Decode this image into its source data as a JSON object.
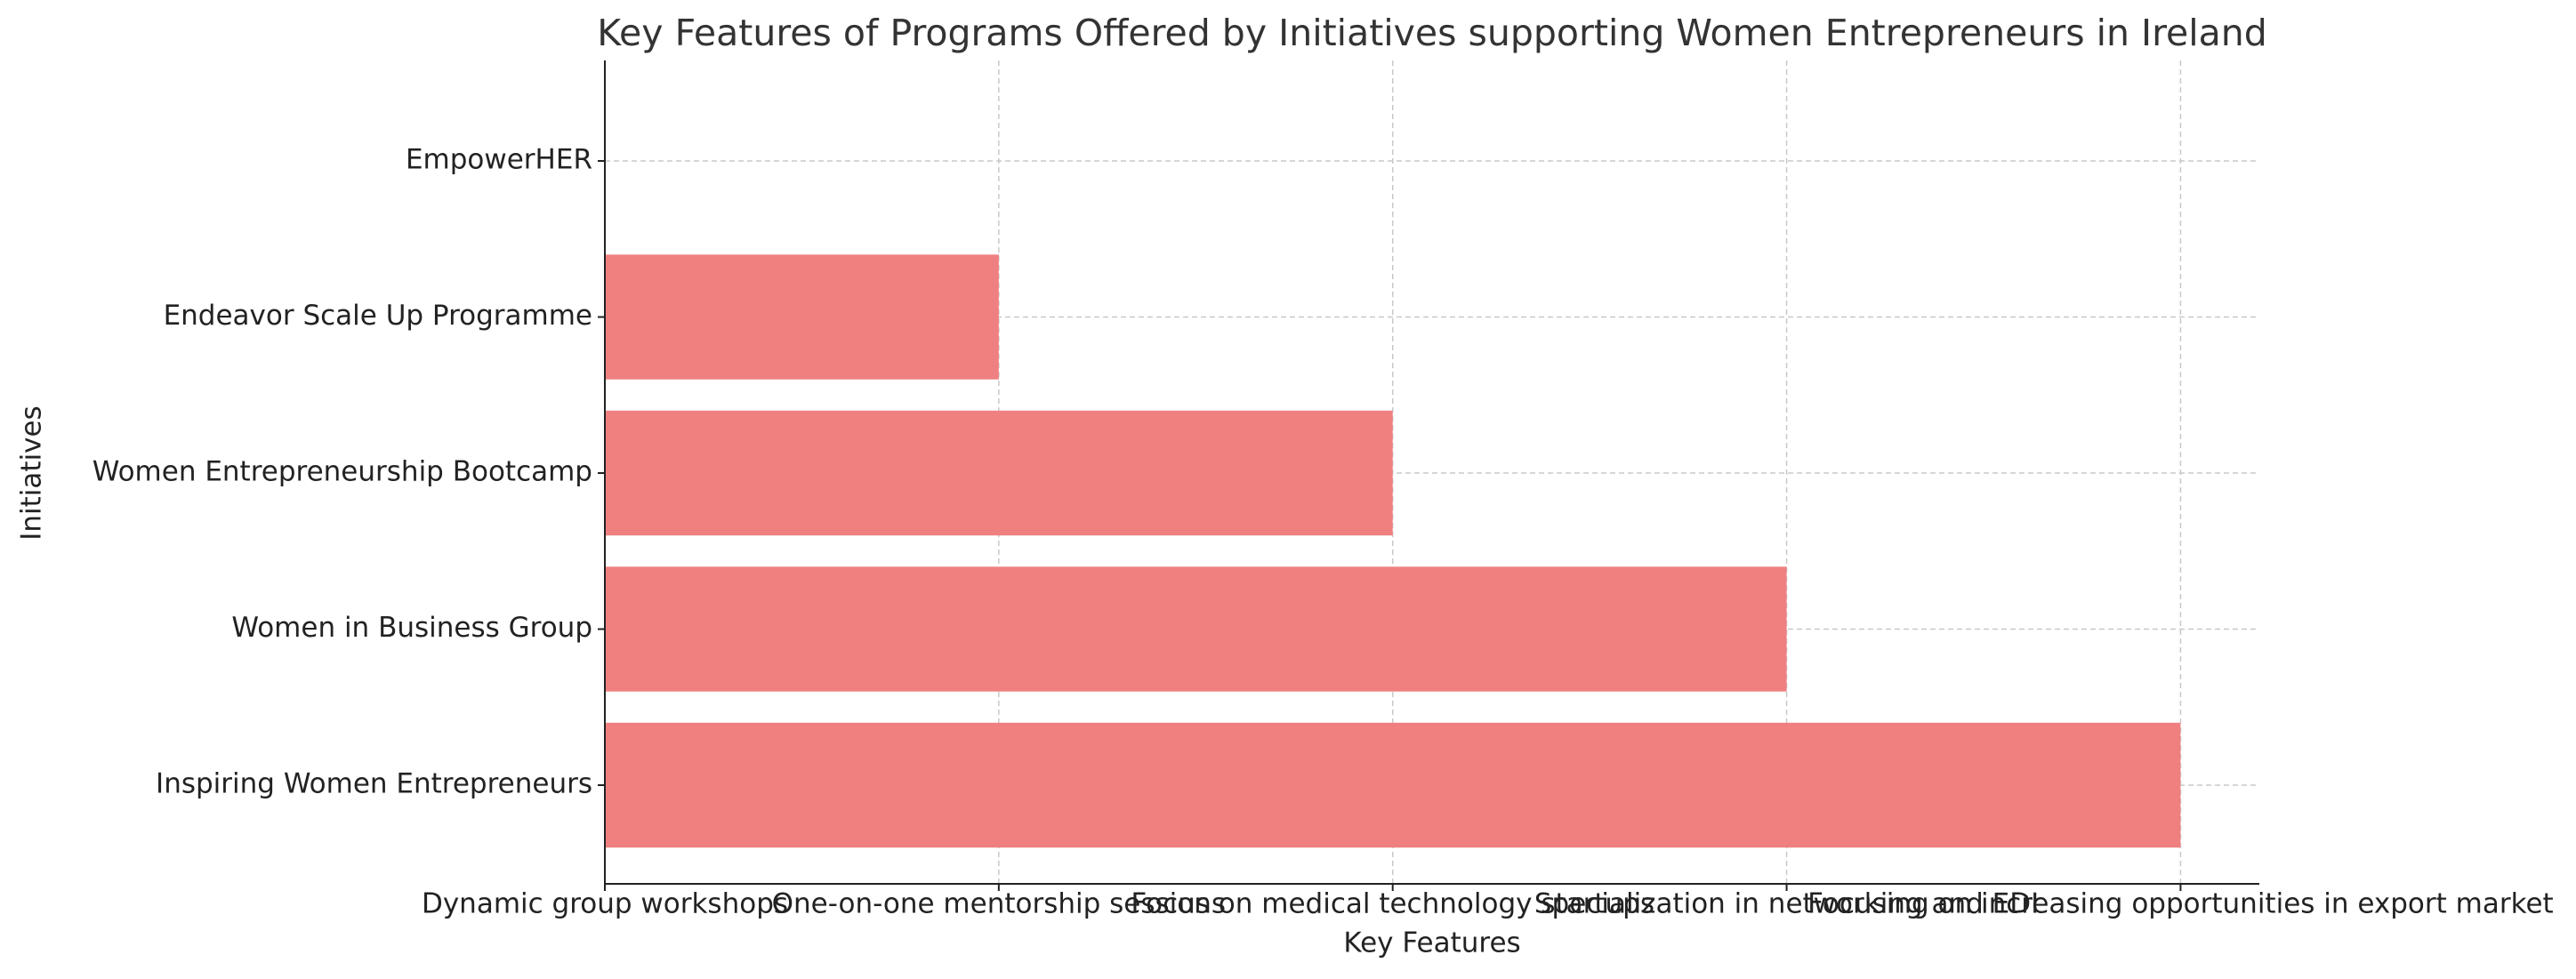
{
  "chart_data": {
    "type": "barh",
    "title": "Key Features of Programs Offered by Initiatives supporting Women Entrepreneurs in Ireland",
    "x_label": "Key Features",
    "y_label": "Initiatives",
    "categories": [
      "Inspiring Women Entrepreneurs",
      "Women in Business Group",
      "Women Entrepreneurship Bootcamp",
      "Endeavor Scale Up Programme",
      "EmpowerHER"
    ],
    "values": [
      4,
      3,
      2,
      1,
      0
    ],
    "color": "#f08080",
    "xlim": [
      0,
      4.2
    ],
    "xticks": [
      {
        "value": 0,
        "label": "Dynamic group workshops"
      },
      {
        "value": 1,
        "label": "One-on-one mentorship sessions"
      },
      {
        "value": 2,
        "label": "Focus on medical technology startups"
      },
      {
        "value": 3,
        "label": "Specialization in networking and EDI"
      },
      {
        "value": 4,
        "label": "Focusing on increasing opportunities in export market"
      }
    ],
    "grid": true
  }
}
